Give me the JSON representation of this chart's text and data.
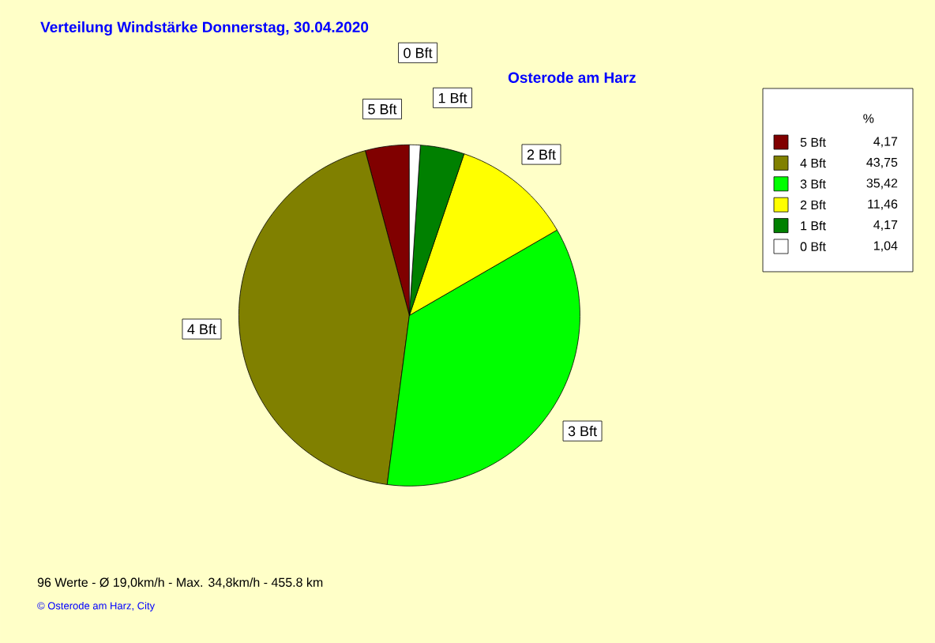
{
  "chart_data": {
    "type": "pie",
    "title": "Verteilung Windstärke  Donnerstag, 30.04.2020",
    "subtitle": "Osterode am Harz",
    "categories": [
      "5 Bft",
      "4 Bft",
      "3 Bft",
      "2 Bft",
      "1 Bft",
      "0 Bft"
    ],
    "values": [
      4.17,
      43.75,
      35.42,
      11.46,
      4.17,
      1.04
    ],
    "colors": [
      "#800000",
      "#808000",
      "#00ff00",
      "#ffff00",
      "#008000",
      "#ffffff"
    ],
    "legend": "top right",
    "legend_title": "%",
    "value_labels": [
      "4,17",
      "43,75",
      "35,42",
      "11,46",
      "4,17",
      "1,04"
    ],
    "annotations": [
      "96 Werte  -  Ø 19,0km/h  -  Max. 34,8km/h  -  455.8 km",
      "© Osterode am Harz, City"
    ]
  }
}
